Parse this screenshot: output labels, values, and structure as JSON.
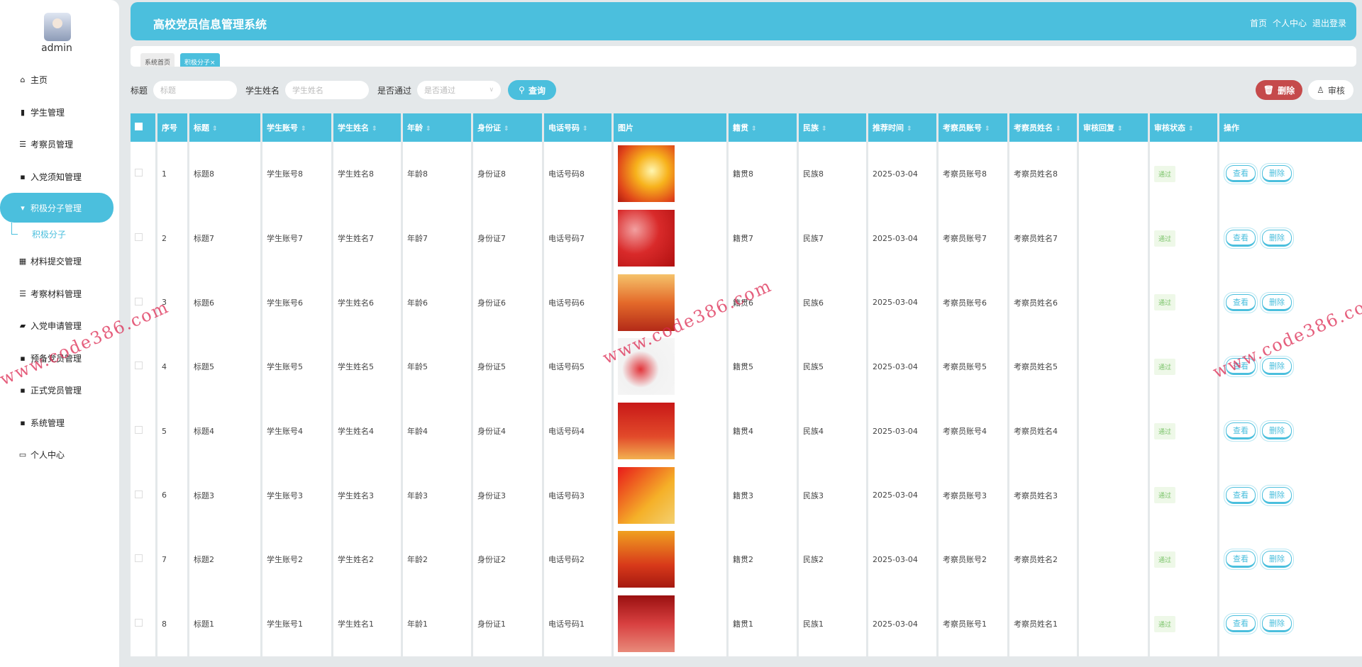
{
  "sidebar": {
    "username": "admin",
    "items": [
      {
        "label": "主页",
        "icon": "home-icon",
        "glyph": "⌂"
      },
      {
        "label": "学生管理",
        "icon": "clipboard-icon",
        "glyph": "▮"
      },
      {
        "label": "考察员管理",
        "icon": "list-icon",
        "glyph": "☰"
      },
      {
        "label": "入党须知管理",
        "icon": "grid-icon",
        "glyph": "▪"
      },
      {
        "label": "积极分子管理",
        "icon": "badge-icon",
        "glyph": "▾",
        "active": true
      },
      {
        "label": "材料提交管理",
        "icon": "apps-icon",
        "glyph": "▦"
      },
      {
        "label": "考察材料管理",
        "icon": "sliders-icon",
        "glyph": "☰"
      },
      {
        "label": "入党申请管理",
        "icon": "briefcase-icon",
        "glyph": "▰"
      },
      {
        "label": "预备党员管理",
        "icon": "grid-icon",
        "glyph": "▪"
      },
      {
        "label": "正式党员管理",
        "icon": "grid-icon",
        "glyph": "▪"
      },
      {
        "label": "系统管理",
        "icon": "grid-icon",
        "glyph": "▪"
      },
      {
        "label": "个人中心",
        "icon": "card-icon",
        "glyph": "▭"
      }
    ],
    "subitem": "积极分子"
  },
  "header": {
    "title": "高校党员信息管理系统",
    "links": [
      "首页",
      "个人中心",
      "退出登录"
    ]
  },
  "tabs": [
    {
      "label": "系统首页"
    },
    {
      "label": "积极分子×",
      "active": true
    }
  ],
  "search": {
    "title_label": "标题",
    "title_placeholder": "标题",
    "name_label": "学生姓名",
    "name_placeholder": "学生姓名",
    "pass_label": "是否通过",
    "pass_placeholder": "是否通过",
    "query": "查询"
  },
  "toolbar": {
    "delete": "删除",
    "audit": "审核"
  },
  "table": {
    "columns": [
      "序号",
      "标题",
      "学生账号",
      "学生姓名",
      "年龄",
      "身份证",
      "电话号码",
      "图片",
      "籍贯",
      "民族",
      "推荐时间",
      "考察员账号",
      "考察员姓名",
      "审核回复",
      "审核状态",
      "操作"
    ],
    "sortable": [
      false,
      true,
      true,
      true,
      true,
      true,
      true,
      false,
      true,
      true,
      true,
      true,
      true,
      true,
      true,
      false
    ],
    "rows": [
      [
        "1",
        "标题8",
        "学生账号8",
        "学生姓名8",
        "年龄8",
        "身份证8",
        "电话号码8",
        "",
        "籍贯8",
        "民族8",
        "2025-03-04",
        "考察员账号8",
        "考察员姓名8",
        "",
        "通过"
      ],
      [
        "2",
        "标题7",
        "学生账号7",
        "学生姓名7",
        "年龄7",
        "身份证7",
        "电话号码7",
        "",
        "籍贯7",
        "民族7",
        "2025-03-04",
        "考察员账号7",
        "考察员姓名7",
        "",
        "通过"
      ],
      [
        "3",
        "标题6",
        "学生账号6",
        "学生姓名6",
        "年龄6",
        "身份证6",
        "电话号码6",
        "",
        "籍贯6",
        "民族6",
        "2025-03-04",
        "考察员账号6",
        "考察员姓名6",
        "",
        "通过"
      ],
      [
        "4",
        "标题5",
        "学生账号5",
        "学生姓名5",
        "年龄5",
        "身份证5",
        "电话号码5",
        "",
        "籍贯5",
        "民族5",
        "2025-03-04",
        "考察员账号5",
        "考察员姓名5",
        "",
        "通过"
      ],
      [
        "5",
        "标题4",
        "学生账号4",
        "学生姓名4",
        "年龄4",
        "身份证4",
        "电话号码4",
        "",
        "籍贯4",
        "民族4",
        "2025-03-04",
        "考察员账号4",
        "考察员姓名4",
        "",
        "通过"
      ],
      [
        "6",
        "标题3",
        "学生账号3",
        "学生姓名3",
        "年龄3",
        "身份证3",
        "电话号码3",
        "",
        "籍贯3",
        "民族3",
        "2025-03-04",
        "考察员账号3",
        "考察员姓名3",
        "",
        "通过"
      ],
      [
        "7",
        "标题2",
        "学生账号2",
        "学生姓名2",
        "年龄2",
        "身份证2",
        "电话号码2",
        "",
        "籍贯2",
        "民族2",
        "2025-03-04",
        "考察员账号2",
        "考察员姓名2",
        "",
        "通过"
      ],
      [
        "8",
        "标题1",
        "学生账号1",
        "学生姓名1",
        "年龄1",
        "身份证1",
        "电话号码1",
        "",
        "籍贯1",
        "民族1",
        "2025-03-04",
        "考察员账号1",
        "考察员姓名1",
        "",
        "通过"
      ]
    ],
    "actions": [
      "查看",
      "删除"
    ]
  },
  "watermark": "www.code386.com",
  "colors": {
    "primary": "#4bbfdd",
    "danger": "#c54a4b",
    "success": "#7bc36a"
  }
}
